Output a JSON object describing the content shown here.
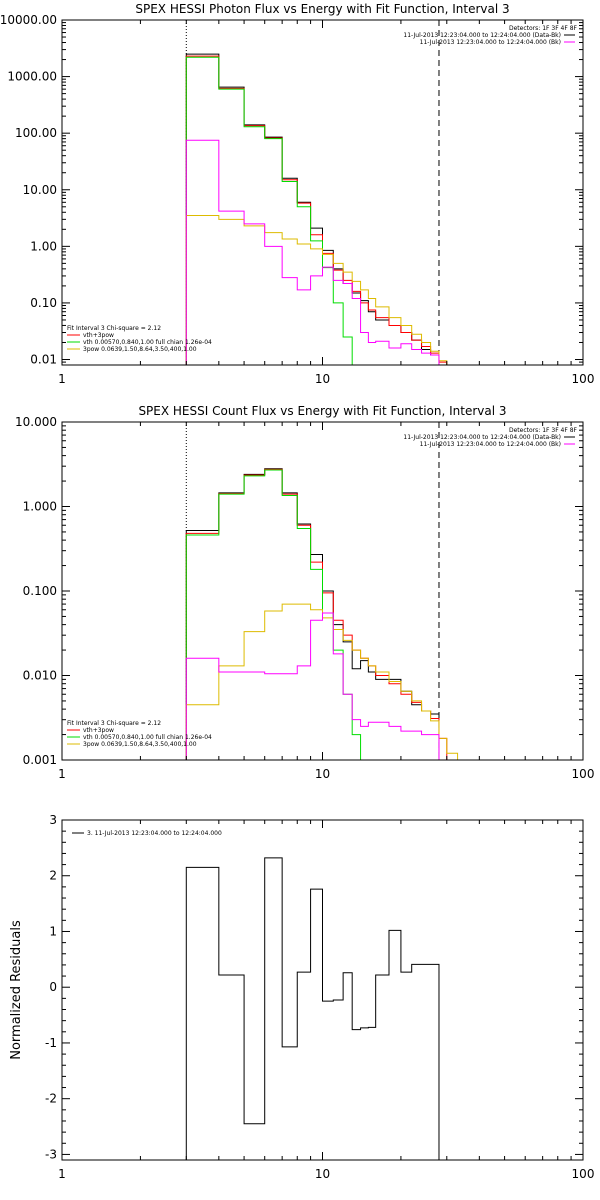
{
  "chart_data": [
    {
      "type": "line",
      "title": "SPEX HESSI Photon Flux vs Energy with Fit Function, Interval 3",
      "xlabel": "",
      "ylabel": "",
      "xscale": "log",
      "yscale": "log",
      "xlim": [
        1,
        100
      ],
      "ylim": [
        0.008,
        10000
      ],
      "xticks": [
        {
          "v": 1,
          "label": "1"
        },
        {
          "v": 10,
          "label": "10"
        },
        {
          "v": 100,
          "label": "100"
        }
      ],
      "yticks": [
        {
          "v": 0.01,
          "label": "0.01"
        },
        {
          "v": 0.1,
          "label": "0.10"
        },
        {
          "v": 1,
          "label": "1.00"
        },
        {
          "v": 10,
          "label": "10.00"
        },
        {
          "v": 100,
          "label": "100.00"
        },
        {
          "v": 1000,
          "label": "1000.00"
        },
        {
          "v": 10000,
          "label": "10000.00"
        }
      ],
      "legend_topright": {
        "header": "Detectors: 1F 3F 4F 8F",
        "entries": [
          {
            "label": "11-Jul-2013 12:23:04.000 to 12:24:04.000 (Data-Bk)",
            "color": "#000000"
          },
          {
            "label": "11-Jul-2013 12:23:04.000 to 12:24:04.000 (Bk)",
            "color": "#ff00ff"
          }
        ]
      },
      "legend_bottomleft": {
        "header": "Fit Interval 3   Chi-square = 2.12",
        "entries": [
          {
            "label": "vth+3pow",
            "color": "#ff0000"
          },
          {
            "label": "vth 0.00570,0.840,1.00  full chian 1.26e-04",
            "color": "#00dd00"
          },
          {
            "label": "3pow 0.0639,1.50,8.64,3.50,400,1.00",
            "color": "#ddbb00"
          }
        ]
      },
      "vlines": [
        {
          "x": 3,
          "style": "dotted"
        },
        {
          "x": 28,
          "style": "dashed"
        }
      ],
      "series": [
        {
          "name": "11-Jul-2013 12:23:04.000 to 12:24:04.000 (Data-Bk)",
          "color": "#000000",
          "edges": [
            3,
            4,
            5,
            6,
            7,
            8,
            9,
            10,
            11,
            12,
            13,
            14,
            15,
            16,
            18,
            20,
            22,
            24,
            26,
            28
          ],
          "values": [
            2500,
            650,
            140,
            85,
            16,
            6,
            2.1,
            0.85,
            0.4,
            0.22,
            0.15,
            0.11,
            0.07,
            0.05,
            0.04,
            0.03,
            0.022,
            0.015,
            0.012
          ]
        },
        {
          "name": "vth+3pow",
          "color": "#ff0000",
          "edges": [
            3,
            4,
            5,
            6,
            7,
            8,
            9,
            10,
            11,
            12,
            13,
            14,
            15,
            16,
            18,
            20,
            22,
            24,
            26,
            28,
            30
          ],
          "values": [
            2300,
            620,
            135,
            82,
            15,
            5.8,
            1.6,
            0.75,
            0.38,
            0.25,
            0.16,
            0.1,
            0.075,
            0.055,
            0.04,
            0.03,
            0.022,
            0.017,
            0.013,
            0.009
          ]
        },
        {
          "name": "vth 0.00570,0.840,1.00  full chian 1.26e-04",
          "color": "#00dd00",
          "edges": [
            3,
            4,
            5,
            6,
            7,
            8,
            9,
            10,
            11,
            12,
            13
          ],
          "values": [
            2200,
            600,
            130,
            80,
            14,
            5,
            1.25,
            0.42,
            0.1,
            0.025
          ]
        },
        {
          "name": "3pow 0.0639,1.50,8.64,3.50,400,1.00",
          "color": "#ddbb00",
          "edges": [
            3,
            4,
            5,
            6,
            7,
            8,
            9,
            10,
            11,
            12,
            13,
            14,
            15,
            16,
            18,
            20,
            22,
            24,
            26,
            28,
            30
          ],
          "values": [
            3.5,
            3.0,
            2.3,
            1.75,
            1.35,
            1.1,
            0.9,
            0.72,
            0.5,
            0.35,
            0.24,
            0.17,
            0.12,
            0.085,
            0.055,
            0.04,
            0.028,
            0.02,
            0.014,
            0.0095
          ]
        },
        {
          "name": "11-Jul-2013 12:23:04.000 to 12:24:04.000 (Bk)",
          "color": "#ff00ff",
          "edges": [
            3,
            4,
            5,
            6,
            7,
            8,
            9,
            10,
            11,
            12,
            13,
            14,
            15,
            16,
            18,
            20,
            22,
            24,
            26,
            28
          ],
          "values": [
            75,
            4.2,
            2.5,
            1.0,
            0.28,
            0.17,
            0.3,
            0.43,
            0.25,
            0.22,
            0.12,
            0.03,
            0.02,
            0.021,
            0.016,
            0.019,
            0.015,
            0.013,
            0.012
          ]
        }
      ]
    },
    {
      "type": "line",
      "title": "SPEX HESSI Count Flux vs Energy with Fit Function, Interval 3",
      "xlabel": "",
      "ylabel": "",
      "xscale": "log",
      "yscale": "log",
      "xlim": [
        1,
        100
      ],
      "ylim": [
        0.001,
        10
      ],
      "xticks": [
        {
          "v": 1,
          "label": "1"
        },
        {
          "v": 10,
          "label": "10"
        },
        {
          "v": 100,
          "label": "100"
        }
      ],
      "yticks": [
        {
          "v": 0.001,
          "label": "0.001"
        },
        {
          "v": 0.01,
          "label": "0.010"
        },
        {
          "v": 0.1,
          "label": "0.100"
        },
        {
          "v": 1,
          "label": "1.000"
        },
        {
          "v": 10,
          "label": "10.000"
        }
      ],
      "legend_topright": {
        "header": "Detectors: 1F 3F 4F 8F",
        "entries": [
          {
            "label": "11-Jul-2013 12:23:04.000 to 12:24:04.000 (Data-Bk)",
            "color": "#000000"
          },
          {
            "label": "11-Jul-2013 12:23:04.000 to 12:24:04.000 (Bk)",
            "color": "#ff00ff"
          }
        ]
      },
      "legend_bottomleft": {
        "header": "Fit Interval 3   Chi-square = 2.12",
        "entries": [
          {
            "label": "vth+3pow",
            "color": "#ff0000"
          },
          {
            "label": "vth 0.00570,0.840,1.00  full chian 1.26e-04",
            "color": "#00dd00"
          },
          {
            "label": "3pow 0.0639,1.50,8.64,3.50,400,1.00",
            "color": "#ddbb00"
          }
        ]
      },
      "vlines": [
        {
          "x": 3,
          "style": "dotted"
        },
        {
          "x": 28,
          "style": "dashed"
        }
      ],
      "series": [
        {
          "name": "11-Jul-2013 12:23:04.000 to 12:24:04.000 (Data-Bk)",
          "color": "#000000",
          "edges": [
            3,
            4,
            5,
            6,
            7,
            8,
            9,
            10,
            11,
            12,
            13,
            14,
            15,
            16,
            18,
            20,
            22,
            24,
            26,
            28
          ],
          "values": [
            0.52,
            1.45,
            2.4,
            2.8,
            1.45,
            0.62,
            0.27,
            0.1,
            0.04,
            0.025,
            0.012,
            0.015,
            0.011,
            0.009,
            0.009,
            0.0065,
            0.0045,
            0.0038,
            0.0035
          ]
        },
        {
          "name": "vth+3pow",
          "color": "#ff0000",
          "edges": [
            3,
            4,
            5,
            6,
            7,
            8,
            9,
            10,
            11,
            12,
            13,
            14,
            15,
            16,
            18,
            20,
            22,
            24,
            26,
            28,
            30
          ],
          "values": [
            0.48,
            1.42,
            2.35,
            2.75,
            1.4,
            0.6,
            0.22,
            0.095,
            0.045,
            0.03,
            0.02,
            0.016,
            0.013,
            0.01,
            0.008,
            0.006,
            0.0048,
            0.0038,
            0.0031,
            0.0018
          ]
        },
        {
          "name": "vth 0.00570,0.840,1.00  full chian 1.26e-04",
          "color": "#00dd00",
          "edges": [
            3,
            4,
            5,
            6,
            7,
            8,
            9,
            10,
            11,
            12,
            13,
            14
          ],
          "values": [
            0.46,
            1.4,
            2.3,
            2.7,
            1.35,
            0.55,
            0.18,
            0.055,
            0.02,
            0.006,
            0.002
          ]
        },
        {
          "name": "3pow 0.0639,1.50,8.64,3.50,400,1.00",
          "color": "#ddbb00",
          "edges": [
            3,
            4,
            5,
            6,
            7,
            8,
            9,
            10,
            11,
            12,
            13,
            14,
            15,
            16,
            18,
            20,
            22,
            24,
            26,
            28,
            30,
            33
          ],
          "values": [
            0.0045,
            0.013,
            0.033,
            0.058,
            0.07,
            0.07,
            0.06,
            0.048,
            0.035,
            0.026,
            0.02,
            0.016,
            0.013,
            0.011,
            0.0085,
            0.0065,
            0.005,
            0.0038,
            0.0029,
            0.0018,
            0.0012
          ]
        },
        {
          "name": "11-Jul-2013 12:23:04.000 to 12:24:04.000 (Bk)",
          "color": "#ff00ff",
          "edges": [
            3,
            4,
            5,
            6,
            7,
            8,
            9,
            10,
            11,
            12,
            13,
            14,
            15,
            16,
            18,
            20,
            22,
            24,
            26,
            28
          ],
          "values": [
            0.016,
            0.011,
            0.011,
            0.0105,
            0.0105,
            0.013,
            0.045,
            0.055,
            0.018,
            0.006,
            0.003,
            0.0025,
            0.0028,
            0.0028,
            0.0025,
            0.0022,
            0.0022,
            0.002,
            0.002
          ]
        }
      ]
    },
    {
      "type": "line",
      "title": "",
      "xlabel": "",
      "ylabel": "Normalized Residuals",
      "xscale": "log",
      "yscale": "linear",
      "xlim": [
        1,
        100
      ],
      "ylim": [
        -3.1,
        3
      ],
      "xticks": [
        {
          "v": 1,
          "label": "1"
        },
        {
          "v": 10,
          "label": "10"
        },
        {
          "v": 100,
          "label": "100"
        }
      ],
      "yticks": [
        {
          "v": -3,
          "label": "-3"
        },
        {
          "v": -2,
          "label": "-2"
        },
        {
          "v": -1,
          "label": "-1"
        },
        {
          "v": 0,
          "label": "0"
        },
        {
          "v": 1,
          "label": "1"
        },
        {
          "v": 2,
          "label": "2"
        },
        {
          "v": 3,
          "label": "3"
        }
      ],
      "legend_topleft": {
        "entries": [
          {
            "label": "3. 11-Jul-2013 12:23:04.000 to 12:24:04.000",
            "color": "#000000"
          }
        ]
      },
      "series": [
        {
          "name": "3. 11-Jul-2013 12:23:04.000 to 12:24:04.000",
          "color": "#000000",
          "edges": [
            3,
            4,
            5,
            6,
            7,
            8,
            9,
            10,
            11,
            12,
            13,
            14,
            15,
            16,
            18,
            20,
            22,
            24,
            26,
            28
          ],
          "values": [
            2.15,
            0.22,
            -2.45,
            2.32,
            -1.07,
            0.27,
            1.76,
            -0.25,
            -0.23,
            0.26,
            -0.76,
            -0.73,
            -0.72,
            0.22,
            1.02,
            0.27,
            0.41,
            0.41,
            0.41
          ],
          "drop_to_bottom_at_ends": true
        }
      ]
    }
  ]
}
